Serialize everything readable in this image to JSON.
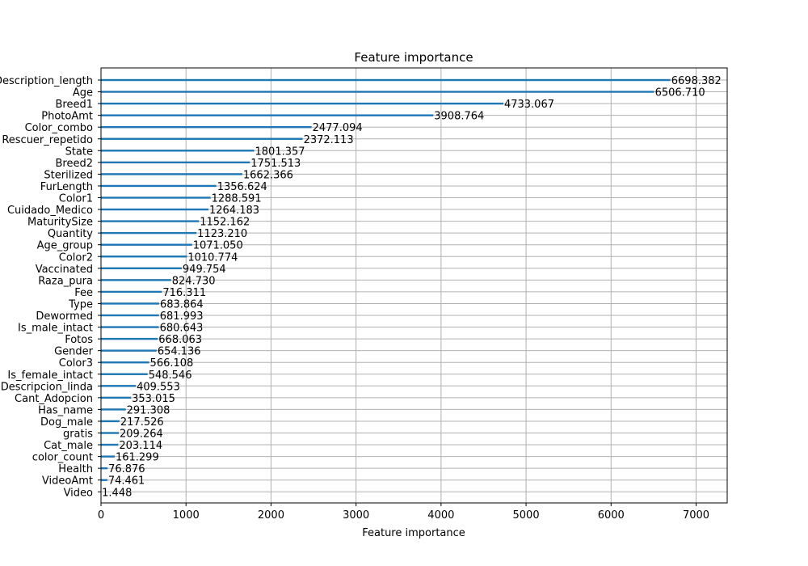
{
  "chart_data": {
    "type": "bar",
    "orientation": "horizontal",
    "title": "Feature importance",
    "xlabel": "Feature importance",
    "ylabel": "",
    "xlim": [
      0,
      7366
    ],
    "xticks": [
      0,
      1000,
      2000,
      3000,
      4000,
      5000,
      6000,
      7000
    ],
    "xtick_labels": [
      "0",
      "1000",
      "2000",
      "3000",
      "4000",
      "5000",
      "6000",
      "7000"
    ],
    "grid": true,
    "bar_color": "#1f77b4",
    "grid_color": "#b0b0b0",
    "categories": [
      "Description_length",
      "Age",
      "Breed1",
      "PhotoAmt",
      "Color_combo",
      "Rescuer_repetido",
      "State",
      "Breed2",
      "Sterilized",
      "FurLength",
      "Color1",
      "Cuidado_Medico",
      "MaturitySize",
      "Quantity",
      "Age_group",
      "Color2",
      "Vaccinated",
      "Raza_pura",
      "Fee",
      "Type",
      "Dewormed",
      "Is_male_intact",
      "Fotos",
      "Gender",
      "Color3",
      "Is_female_intact",
      "Descripcion_linda",
      "Cant_Adopcion",
      "Has_name",
      "Dog_male",
      "gratis",
      "Cat_male",
      "color_count",
      "Health",
      "VideoAmt",
      "Video"
    ],
    "values": [
      6698.382,
      6506.71,
      4733.067,
      3908.764,
      2477.094,
      2372.113,
      1801.357,
      1751.513,
      1662.366,
      1356.624,
      1288.591,
      1264.183,
      1152.162,
      1123.21,
      1071.05,
      1010.774,
      949.754,
      824.73,
      716.311,
      683.864,
      681.993,
      680.643,
      668.063,
      654.136,
      566.108,
      548.546,
      409.553,
      353.015,
      291.308,
      217.526,
      209.264,
      203.114,
      161.299,
      76.876,
      74.461,
      1.448
    ],
    "value_labels": [
      "6698.382",
      "6506.710",
      "4733.067",
      "3908.764",
      "2477.094",
      "2372.113",
      "1801.357",
      "1751.513",
      "1662.366",
      "1356.624",
      "1288.591",
      "1264.183",
      "1152.162",
      "1123.210",
      "1071.050",
      "1010.774",
      "949.754",
      "824.730",
      "716.311",
      "683.864",
      "681.993",
      "680.643",
      "668.063",
      "654.136",
      "566.108",
      "548.546",
      "409.553",
      "353.015",
      "291.308",
      "217.526",
      "209.264",
      "203.114",
      "161.299",
      "76.876",
      "74.461",
      "1.448"
    ]
  }
}
